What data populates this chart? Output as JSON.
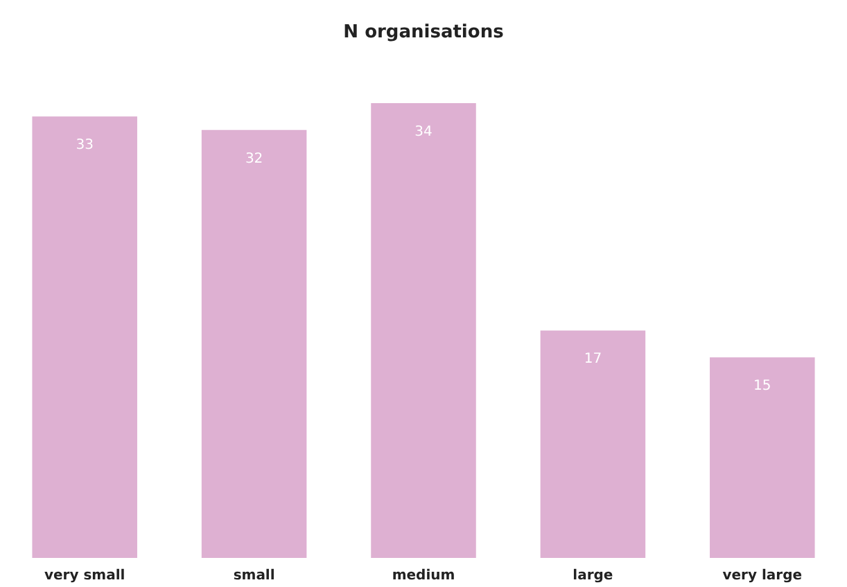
{
  "chart_data": {
    "type": "bar",
    "title": "N organisations",
    "categories": [
      "very small",
      "small",
      "medium",
      "large",
      "very large"
    ],
    "values": [
      33,
      32,
      34,
      17,
      15
    ],
    "color": "#deb0d2",
    "data_labels": true
  }
}
